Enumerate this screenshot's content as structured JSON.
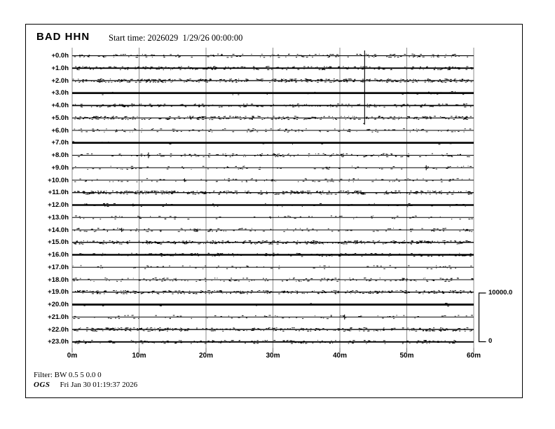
{
  "header": {
    "station": "BAD HHN",
    "start_time": "Start time: 2026029  1/29/26 00:00:00"
  },
  "footer": {
    "filter_label": "Filter: BW 0.5 5 0.0 0",
    "agency": "OGS",
    "timestamp": "Fri Jan 30 01:19:37 2026"
  },
  "scale_bar": {
    "max_label": "10000.0",
    "min_label": "0"
  },
  "colors": {
    "trace": "#000000",
    "grid": "#8c8c8c",
    "tick": "#666666",
    "frame": "#000000"
  },
  "chart_data": {
    "type": "line",
    "title": "BAD HHN helicorder (24-hour seismic drum record)",
    "x_tick_labels": [
      "0m",
      "10m",
      "20m",
      "30m",
      "40m",
      "50m",
      "60m"
    ],
    "x_range_minutes": [
      0,
      60
    ],
    "minutes_per_row": 60,
    "grid": {
      "vertical_every_min": 10,
      "horizontal": false
    },
    "legend_position": "none",
    "amplitude_scale": {
      "max": 10000.0,
      "min": 0
    },
    "big_event": {
      "row": 5,
      "minute": 43.7,
      "clipped_to_top": true
    },
    "rows": [
      {
        "label": "+0.0h",
        "weight": 1.1,
        "noise": 140,
        "spikes": []
      },
      {
        "label": "+1.0h",
        "weight": 1.9,
        "noise": 180,
        "spikes": []
      },
      {
        "label": "+2.0h",
        "weight": 1.3,
        "noise": 320,
        "spikes": []
      },
      {
        "label": "+3.0h",
        "weight": 2.7,
        "noise": 20,
        "spikes": []
      },
      {
        "label": "+4.0h",
        "weight": 1.7,
        "noise": 150,
        "spikes": []
      },
      {
        "label": "+5.0h",
        "weight": 1.1,
        "noise": 260,
        "spikes": []
      },
      {
        "label": "+6.0h",
        "weight": 1.0,
        "noise": 110,
        "spikes": []
      },
      {
        "label": "+7.0h",
        "weight": 2.7,
        "noise": 12,
        "spikes": []
      },
      {
        "label": "+8.0h",
        "weight": 1.0,
        "noise": 130,
        "spikes": [
          {
            "minute": 11.4,
            "half_height": 4
          }
        ]
      },
      {
        "label": "+9.0h",
        "weight": 1.0,
        "noise": 70,
        "spikes": [
          {
            "minute": 52.9,
            "half_height": 3.5
          }
        ]
      },
      {
        "label": "+10.0h",
        "weight": 1.0,
        "noise": 90,
        "spikes": [
          {
            "minute": 16.8,
            "half_height": 2.5
          }
        ]
      },
      {
        "label": "+11.0h",
        "weight": 1.3,
        "noise": 300,
        "spikes": []
      },
      {
        "label": "+12.0h",
        "weight": 2.4,
        "noise": 40,
        "spikes": [
          {
            "minute": 9.1,
            "half_height": 2
          }
        ]
      },
      {
        "label": "+13.0h",
        "weight": 1.0,
        "noise": 60,
        "spikes": []
      },
      {
        "label": "+14.0h",
        "weight": 1.0,
        "noise": 120,
        "spikes": [
          {
            "minute": 7.4,
            "half_height": 3
          }
        ]
      },
      {
        "label": "+15.0h",
        "weight": 1.4,
        "noise": 280,
        "spikes": [
          {
            "minute": 17.1,
            "half_height": 2.5
          },
          {
            "minute": 58.0,
            "half_height": 2
          }
        ]
      },
      {
        "label": "+16.0h",
        "weight": 2.4,
        "noise": 120,
        "spikes": []
      },
      {
        "label": "+17.0h",
        "weight": 1.0,
        "noise": 60,
        "spikes": []
      },
      {
        "label": "+18.0h",
        "weight": 1.0,
        "noise": 140,
        "spikes": []
      },
      {
        "label": "+19.0h",
        "weight": 1.3,
        "noise": 240,
        "spikes": [
          {
            "minute": 45.6,
            "half_height": 1.5
          }
        ]
      },
      {
        "label": "+20.0h",
        "weight": 2.8,
        "noise": 10,
        "spikes": []
      },
      {
        "label": "+21.0h",
        "weight": 1.0,
        "noise": 70,
        "spikes": [
          {
            "minute": 40.7,
            "half_height": 3.5
          }
        ]
      },
      {
        "label": "+22.0h",
        "weight": 1.4,
        "noise": 260,
        "spikes": []
      },
      {
        "label": "+23.0h",
        "weight": 1.9,
        "noise": 150,
        "spikes": []
      }
    ]
  }
}
